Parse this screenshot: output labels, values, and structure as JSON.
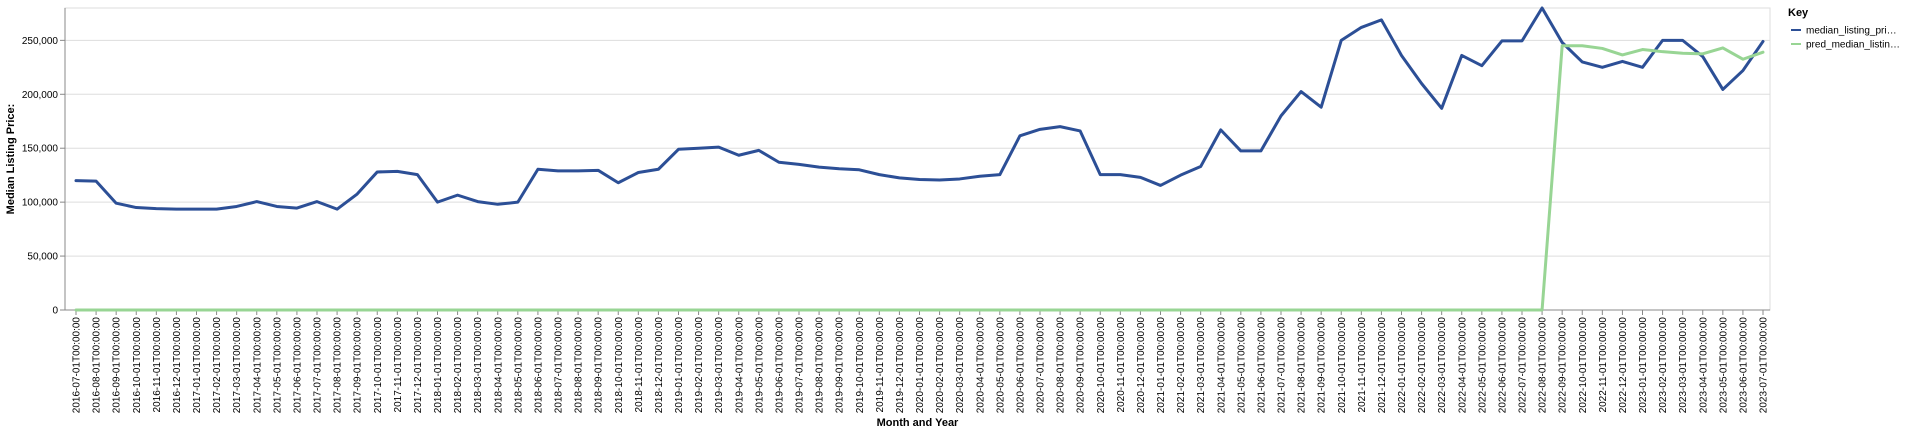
{
  "chart_data": {
    "type": "line",
    "xlabel": "Month and Year",
    "ylabel": "Median Listing Price:",
    "ylim": [
      0,
      280000
    ],
    "yticks": [
      0,
      50000,
      100000,
      150000,
      200000,
      250000
    ],
    "ytick_labels": [
      "0",
      "50,000",
      "100,000",
      "150,000",
      "200,000",
      "250,000"
    ],
    "grid": true,
    "legend": {
      "title": "Key",
      "placement": "top-right",
      "entries": [
        "median_listing_pri…",
        "pred_median_listin…"
      ]
    },
    "x": [
      "2016-07-01T00:00:00",
      "2016-08-01T00:00:00",
      "2016-09-01T00:00:00",
      "2016-10-01T00:00:00",
      "2016-11-01T00:00:00",
      "2016-12-01T00:00:00",
      "2017-01-01T00:00:00",
      "2017-02-01T00:00:00",
      "2017-03-01T00:00:00",
      "2017-04-01T00:00:00",
      "2017-05-01T00:00:00",
      "2017-06-01T00:00:00",
      "2017-07-01T00:00:00",
      "2017-08-01T00:00:00",
      "2017-09-01T00:00:00",
      "2017-10-01T00:00:00",
      "2017-11-01T00:00:00",
      "2017-12-01T00:00:00",
      "2018-01-01T00:00:00",
      "2018-02-01T00:00:00",
      "2018-03-01T00:00:00",
      "2018-04-01T00:00:00",
      "2018-05-01T00:00:00",
      "2018-06-01T00:00:00",
      "2018-07-01T00:00:00",
      "2018-08-01T00:00:00",
      "2018-09-01T00:00:00",
      "2018-10-01T00:00:00",
      "2018-11-01T00:00:00",
      "2018-12-01T00:00:00",
      "2019-01-01T00:00:00",
      "2019-02-01T00:00:00",
      "2019-03-01T00:00:00",
      "2019-04-01T00:00:00",
      "2019-05-01T00:00:00",
      "2019-06-01T00:00:00",
      "2019-07-01T00:00:00",
      "2019-08-01T00:00:00",
      "2019-09-01T00:00:00",
      "2019-10-01T00:00:00",
      "2019-11-01T00:00:00",
      "2019-12-01T00:00:00",
      "2020-01-01T00:00:00",
      "2020-02-01T00:00:00",
      "2020-03-01T00:00:00",
      "2020-04-01T00:00:00",
      "2020-05-01T00:00:00",
      "2020-06-01T00:00:00",
      "2020-07-01T00:00:00",
      "2020-08-01T00:00:00",
      "2020-09-01T00:00:00",
      "2020-10-01T00:00:00",
      "2020-11-01T00:00:00",
      "2020-12-01T00:00:00",
      "2021-01-01T00:00:00",
      "2021-02-01T00:00:00",
      "2021-03-01T00:00:00",
      "2021-04-01T00:00:00",
      "2021-05-01T00:00:00",
      "2021-06-01T00:00:00",
      "2021-07-01T00:00:00",
      "2021-08-01T00:00:00",
      "2021-09-01T00:00:00",
      "2021-10-01T00:00:00",
      "2021-11-01T00:00:00",
      "2021-12-01T00:00:00",
      "2022-01-01T00:00:00",
      "2022-02-01T00:00:00",
      "2022-03-01T00:00:00",
      "2022-04-01T00:00:00",
      "2022-05-01T00:00:00",
      "2022-06-01T00:00:00",
      "2022-07-01T00:00:00",
      "2022-08-01T00:00:00",
      "2022-09-01T00:00:00",
      "2022-10-01T00:00:00",
      "2022-11-01T00:00:00",
      "2022-12-01T00:00:00",
      "2023-01-01T00:00:00",
      "2023-02-01T00:00:00",
      "2023-03-01T00:00:00",
      "2023-04-01T00:00:00",
      "2023-05-01T00:00:00",
      "2023-06-01T00:00:00",
      "2023-07-01T00:00:00"
    ],
    "series": [
      {
        "name": "median_listing_pri…",
        "color": "#2c4f96",
        "values": [
          120000,
          119500,
          99000,
          95000,
          94000,
          93500,
          93500,
          93500,
          96000,
          100500,
          96000,
          94500,
          100500,
          93500,
          107500,
          128000,
          128500,
          125500,
          100000,
          106500,
          100500,
          98000,
          100000,
          130500,
          129000,
          129000,
          129500,
          118000,
          127500,
          130500,
          149000,
          150000,
          151000,
          143500,
          148000,
          137000,
          135000,
          132500,
          131000,
          130000,
          125500,
          122500,
          121000,
          120500,
          121500,
          124000,
          125500,
          161500,
          167500,
          170000,
          166000,
          125500,
          125500,
          123000,
          115500,
          125000,
          133000,
          167000,
          147500,
          147500,
          180000,
          202500,
          188000,
          250000,
          262000,
          269000,
          236000,
          210000,
          187000,
          236000,
          226500,
          249500,
          249500,
          280000,
          248000,
          230000,
          225000,
          230500,
          225000,
          250000,
          250000,
          235000,
          204500,
          222000,
          249000
        ]
      },
      {
        "name": "pred_median_listin…",
        "color": "#98d594",
        "values": [
          0,
          0,
          0,
          0,
          0,
          0,
          0,
          0,
          0,
          0,
          0,
          0,
          0,
          0,
          0,
          0,
          0,
          0,
          0,
          0,
          0,
          0,
          0,
          0,
          0,
          0,
          0,
          0,
          0,
          0,
          0,
          0,
          0,
          0,
          0,
          0,
          0,
          0,
          0,
          0,
          0,
          0,
          0,
          0,
          0,
          0,
          0,
          0,
          0,
          0,
          0,
          0,
          0,
          0,
          0,
          0,
          0,
          0,
          0,
          0,
          0,
          0,
          0,
          0,
          0,
          0,
          0,
          0,
          0,
          0,
          0,
          0,
          0,
          0,
          245000,
          245000,
          242500,
          236500,
          241500,
          239500,
          238000,
          237500,
          243000,
          232500,
          239000
        ]
      }
    ]
  }
}
